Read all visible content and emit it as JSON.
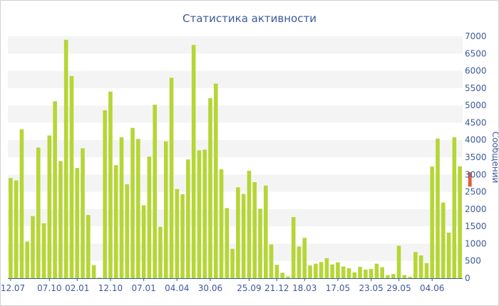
{
  "chart_data": {
    "type": "bar",
    "title": "Статистика активности",
    "xlabel": "",
    "ylabel": "Сообщений",
    "ylim": [
      0,
      7000
    ],
    "ytick_step": 500,
    "grid": "horizontal bands",
    "x_tick_labels": [
      "12.07",
      "07.10",
      "02.01",
      "12.10",
      "07.01",
      "04.04",
      "30.06",
      "25.09",
      "21.12",
      "18.03",
      "17.05",
      "23.05",
      "29.05",
      "04.06"
    ],
    "x_tick_positions": [
      0,
      7,
      12,
      18,
      24,
      30,
      36,
      43,
      48,
      53,
      59,
      65,
      70,
      76
    ],
    "values": [
      2900,
      2830,
      4310,
      1060,
      1800,
      3780,
      1590,
      4130,
      5120,
      3390,
      6900,
      5850,
      3190,
      3760,
      1830,
      380,
      20,
      4860,
      5400,
      3270,
      4080,
      2720,
      4350,
      4030,
      2110,
      3520,
      5020,
      1490,
      3960,
      5800,
      2580,
      2430,
      3440,
      6750,
      3700,
      3720,
      5210,
      5630,
      3150,
      2030,
      850,
      2630,
      2440,
      3110,
      2780,
      2010,
      2680,
      980,
      390,
      160,
      50,
      1770,
      920,
      1170,
      370,
      420,
      470,
      580,
      400,
      460,
      340,
      290,
      170,
      330,
      250,
      270,
      420,
      320,
      90,
      120,
      940,
      90,
      40,
      760,
      660,
      440,
      3230,
      4040,
      2190,
      1320,
      4080,
      3240
    ],
    "highlight": {
      "index": 82,
      "value": 3070,
      "from": 2650
    },
    "colors": {
      "bar": "#b5d636",
      "highlight": "#e0603a",
      "text": "#3d5a99",
      "band": "#f4f4f4",
      "axis": "#3d5a99"
    }
  }
}
